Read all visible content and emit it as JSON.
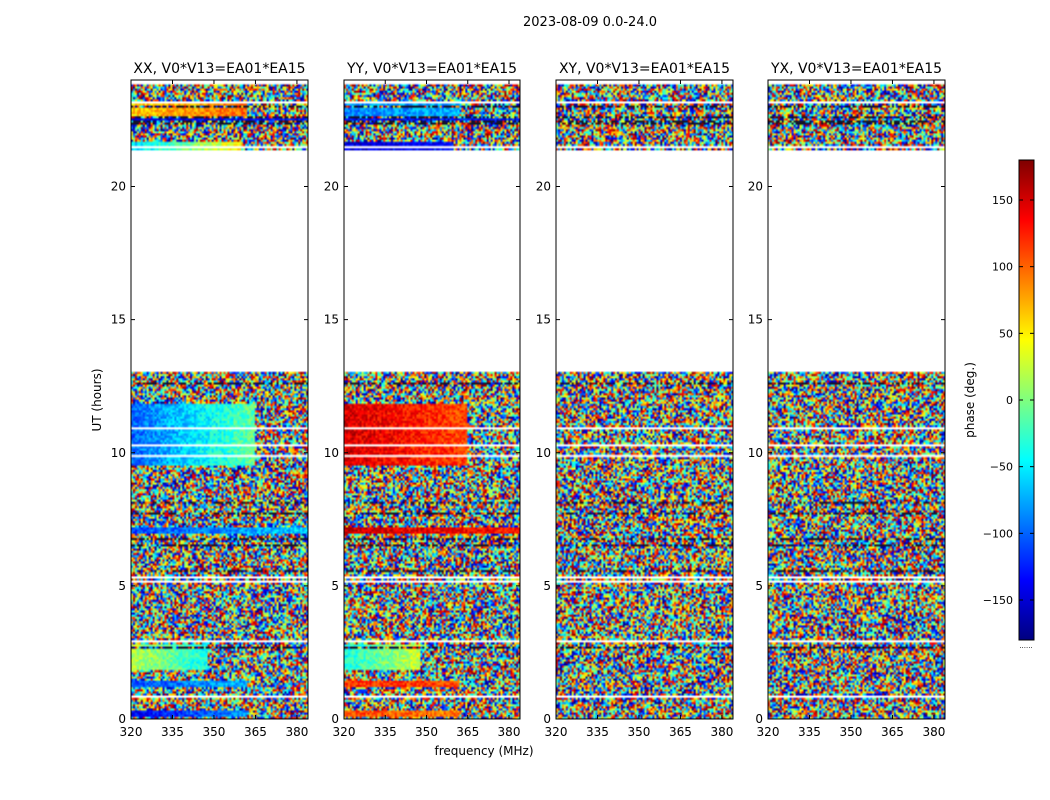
{
  "figure": {
    "suptitle": "2023-08-09 0.0-24.0",
    "xlabel": "frequency (MHz)",
    "ylabel": "UT (hours)"
  },
  "colorbar": {
    "label": "phase (deg.)",
    "range": [
      -180,
      180
    ],
    "ticks": [
      150,
      100,
      50,
      0,
      -50,
      -100,
      -150
    ],
    "tick_labels": [
      "150",
      "100",
      "50",
      "0",
      "−50",
      "−100",
      "−150"
    ],
    "footer": "......",
    "colormap": [
      "#00007f",
      "#0000ff",
      "#007fff",
      "#00ffff",
      "#7fff7f",
      "#ffff00",
      "#ff7f00",
      "#ff0000",
      "#7f0000"
    ]
  },
  "chart_data": {
    "type": "heatmap",
    "title": "2023-08-09 0.0-24.0",
    "xlabel": "frequency (MHz)",
    "ylabel": "UT (hours)",
    "xlim": [
      320,
      384
    ],
    "ylim": [
      0,
      24
    ],
    "xticks": [
      320,
      335,
      350,
      365,
      380
    ],
    "yticks": [
      0,
      5,
      10,
      15,
      20
    ],
    "color_range": [
      -180,
      180
    ],
    "data_gap_hours": [
      13.0,
      21.4
    ],
    "panels": [
      {
        "title": "XX, V0*V13=EA01*EA15",
        "polarization": "XX",
        "coherent": [
          {
            "t0": 0.1,
            "t1": 0.3,
            "base": -140,
            "drift": 60,
            "f_end": 362
          },
          {
            "t0": 1.2,
            "t1": 1.4,
            "base": -110,
            "drift": 40,
            "f_end": 362
          },
          {
            "t0": 1.8,
            "t1": 2.8,
            "base": 20,
            "drift": -60,
            "f_end": 348
          },
          {
            "t0": 7.0,
            "t1": 7.2,
            "base": -110,
            "drift": 50,
            "f_end": 384
          },
          {
            "t0": 9.5,
            "t1": 11.8,
            "base": -100,
            "drift": 90,
            "f_end": 365
          },
          {
            "t0": 21.4,
            "t1": 21.7,
            "base": -60,
            "drift": 110,
            "f_end": 360
          },
          {
            "t0": 22.4,
            "t1": 22.6,
            "base": -140,
            "drift": 10,
            "f_end": 384
          },
          {
            "t0": 22.6,
            "t1": 23.1,
            "base": 60,
            "drift": 40,
            "f_end": 362
          }
        ]
      },
      {
        "title": "YY, V0*V13=EA01*EA15",
        "polarization": "YY",
        "coherent": [
          {
            "t0": 0.1,
            "t1": 0.3,
            "base": 110,
            "drift": -20,
            "f_end": 362
          },
          {
            "t0": 1.2,
            "t1": 1.4,
            "base": 120,
            "drift": -10,
            "f_end": 362
          },
          {
            "t0": 1.8,
            "t1": 2.8,
            "base": -40,
            "drift": 70,
            "f_end": 348
          },
          {
            "t0": 7.0,
            "t1": 7.2,
            "base": 150,
            "drift": -20,
            "f_end": 384
          },
          {
            "t0": 9.5,
            "t1": 11.8,
            "base": 150,
            "drift": -40,
            "f_end": 365
          },
          {
            "t0": 21.4,
            "t1": 21.7,
            "base": -150,
            "drift": 20,
            "f_end": 360
          },
          {
            "t0": 22.4,
            "t1": 22.6,
            "base": -140,
            "drift": 10,
            "f_end": 384
          },
          {
            "t0": 22.6,
            "t1": 23.1,
            "base": -90,
            "drift": 20,
            "f_end": 362
          }
        ]
      },
      {
        "title": "XY, V0*V13=EA01*EA15",
        "polarization": "XY",
        "coherent": []
      },
      {
        "title": "YX, V0*V13=EA01*EA15",
        "polarization": "YX",
        "coherent": []
      }
    ]
  }
}
